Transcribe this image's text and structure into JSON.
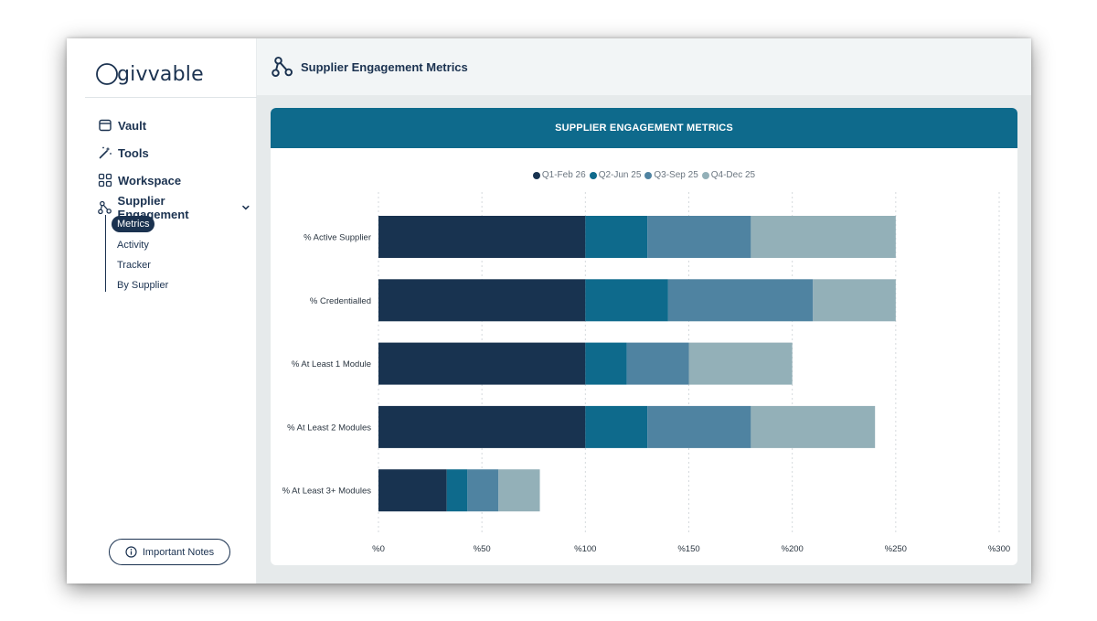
{
  "app": {
    "logo_text": "givvable"
  },
  "sidebar": {
    "items": [
      {
        "label": "Vault",
        "icon": "archive-icon"
      },
      {
        "label": "Tools",
        "icon": "magic-wand-icon"
      },
      {
        "label": "Workspace",
        "icon": "grid-icon"
      },
      {
        "label": "Supplier Engagement",
        "icon": "network-icon",
        "expanded": true
      }
    ],
    "subitems": [
      {
        "label": "Metrics",
        "active": true
      },
      {
        "label": "Activity"
      },
      {
        "label": "Tracker"
      },
      {
        "label": "By Supplier"
      }
    ],
    "notes_button": "Important Notes"
  },
  "header": {
    "title": "Supplier Engagement Metrics",
    "icon": "network-icon"
  },
  "card": {
    "title": "SUPPLIER ENGAGEMENT METRICS"
  },
  "colors": {
    "primary": "#1b3250",
    "accent": "#0e6a8c"
  },
  "chart_data": {
    "type": "bar",
    "orientation": "horizontal",
    "stacked": true,
    "categories": [
      "% Active Supplier",
      "% Credentialled",
      "% At Least 1 Module",
      "% At Least 2 Modules",
      "% At Least 3+ Modules"
    ],
    "series": [
      {
        "name": "Q1-Feb 26",
        "color": "#183350",
        "values": [
          100,
          100,
          100,
          100,
          33
        ]
      },
      {
        "name": "Q2-Jun 25",
        "color": "#0e6a8c",
        "values": [
          30,
          40,
          20,
          30,
          10
        ]
      },
      {
        "name": "Q3-Sep 25",
        "color": "#4f83a1",
        "values": [
          50,
          70,
          30,
          50,
          15
        ]
      },
      {
        "name": "Q4-Dec 25",
        "color": "#93b0b8",
        "values": [
          70,
          40,
          50,
          60,
          20
        ]
      }
    ],
    "xlim": [
      0,
      300
    ],
    "xticks": [
      0,
      50,
      100,
      150,
      200,
      250,
      300
    ],
    "xtick_labels": [
      "%0",
      "%50",
      "%100",
      "%150",
      "%200",
      "%250",
      "%300"
    ],
    "legend_position": "top-center",
    "grid": "vertical dotted"
  }
}
